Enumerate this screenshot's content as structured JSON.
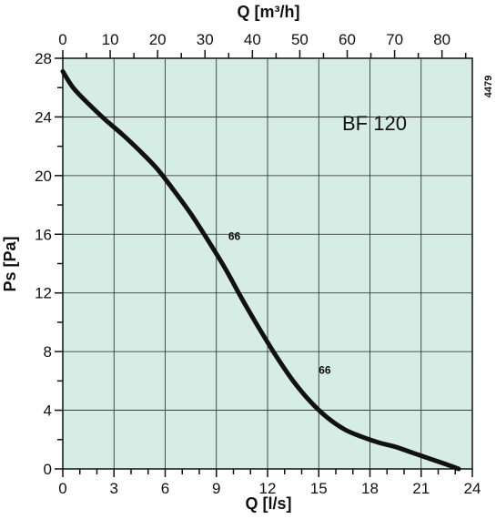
{
  "chart_data": {
    "type": "line",
    "title": "BF 120",
    "code": "4479",
    "xlabel": "Q [l/s]",
    "x2label": "Q [m³/h]",
    "ylabel": "Ps [Pa]",
    "xlim": [
      0,
      24
    ],
    "x2lim": [
      0,
      86.4
    ],
    "ylim": [
      0,
      28
    ],
    "xticks": [
      0,
      3,
      6,
      9,
      12,
      15,
      18,
      21,
      24
    ],
    "x2ticks": [
      0,
      10,
      20,
      30,
      40,
      50,
      60,
      70,
      80
    ],
    "yticks": [
      0,
      4,
      8,
      12,
      16,
      20,
      24,
      28
    ],
    "grid": true,
    "background": "#d6ede6",
    "line_color": "#111111",
    "series": [
      {
        "x": [
          0,
          0.6,
          1.5,
          2.5,
          3.5,
          4.5,
          5.5,
          6.5,
          7.5,
          8.5,
          9.5,
          10.5,
          11.5,
          12.5,
          13.5,
          14.5,
          15.5,
          16.5,
          17.5,
          18.5,
          19.5,
          20.5,
          21.5,
          22.5,
          23.2
        ],
        "y": [
          27.1,
          26.0,
          24.9,
          23.8,
          22.8,
          21.7,
          20.5,
          19.0,
          17.4,
          15.6,
          13.7,
          11.6,
          9.6,
          7.7,
          6.0,
          4.6,
          3.5,
          2.7,
          2.2,
          1.8,
          1.5,
          1.1,
          0.7,
          0.3,
          0.0
        ]
      }
    ],
    "annotations": [
      {
        "text": "66",
        "x": 9.7,
        "y": 15.6
      },
      {
        "text": "66",
        "x": 15.0,
        "y": 6.5
      }
    ]
  }
}
